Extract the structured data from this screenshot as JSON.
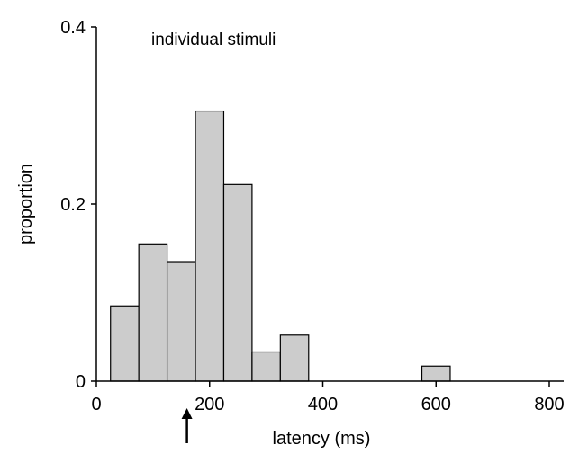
{
  "chart_data": {
    "type": "bar",
    "annotation": "individual stimuli",
    "xlabel": "latency (ms)",
    "ylabel": "proportion",
    "xlim": [
      0,
      800
    ],
    "ylim": [
      0,
      0.4
    ],
    "x_ticks": [
      0,
      200,
      400,
      600,
      800
    ],
    "x_tick_labels": [
      "0",
      "200",
      "400",
      "600",
      "800"
    ],
    "y_ticks": [
      0,
      0.2,
      0.4
    ],
    "y_tick_labels": [
      "0",
      "0.2",
      "0.4"
    ],
    "bin_width": 50,
    "bins": [
      {
        "start": 25,
        "end": 75,
        "value": 0.085
      },
      {
        "start": 75,
        "end": 125,
        "value": 0.155
      },
      {
        "start": 125,
        "end": 175,
        "value": 0.135
      },
      {
        "start": 175,
        "end": 225,
        "value": 0.305
      },
      {
        "start": 225,
        "end": 275,
        "value": 0.222
      },
      {
        "start": 275,
        "end": 325,
        "value": 0.033
      },
      {
        "start": 325,
        "end": 375,
        "value": 0.052
      },
      {
        "start": 575,
        "end": 625,
        "value": 0.017
      }
    ],
    "marker_arrow_x": 160,
    "bar_color": "#cccccc",
    "grid": false,
    "legend": "none"
  }
}
